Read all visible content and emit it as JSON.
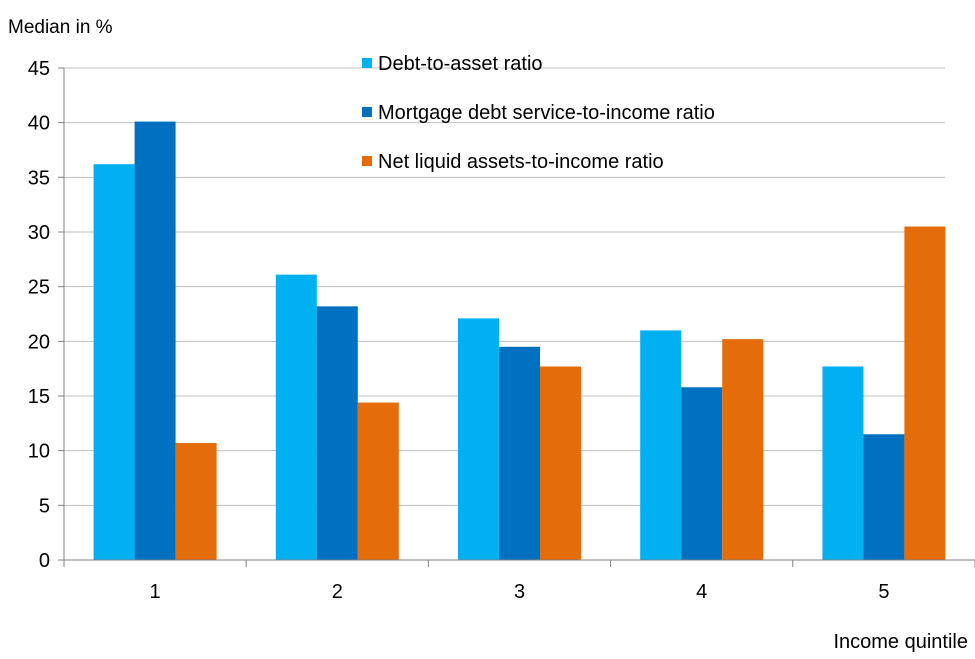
{
  "chart_data": {
    "type": "bar",
    "title": "",
    "ylabel": "Median in %",
    "xlabel": "Income quintile",
    "categories": [
      "1",
      "2",
      "3",
      "4",
      "5"
    ],
    "ylim": [
      0,
      45
    ],
    "yticks": [
      0,
      5,
      10,
      15,
      20,
      25,
      30,
      35,
      40,
      45
    ],
    "grid": true,
    "legend_position": "top",
    "series": [
      {
        "name": "Debt-to-asset ratio",
        "color": "#00B0F0",
        "values": [
          36.2,
          26.1,
          22.1,
          21.0,
          17.7
        ]
      },
      {
        "name": "Mortgage debt service-to-income ratio",
        "color": "#0070C0",
        "values": [
          40.1,
          23.2,
          19.5,
          15.8,
          11.5
        ]
      },
      {
        "name": "Net liquid assets-to-income ratio",
        "color": "#E46C0A",
        "values": [
          10.7,
          14.4,
          17.7,
          20.2,
          30.5
        ]
      }
    ]
  }
}
